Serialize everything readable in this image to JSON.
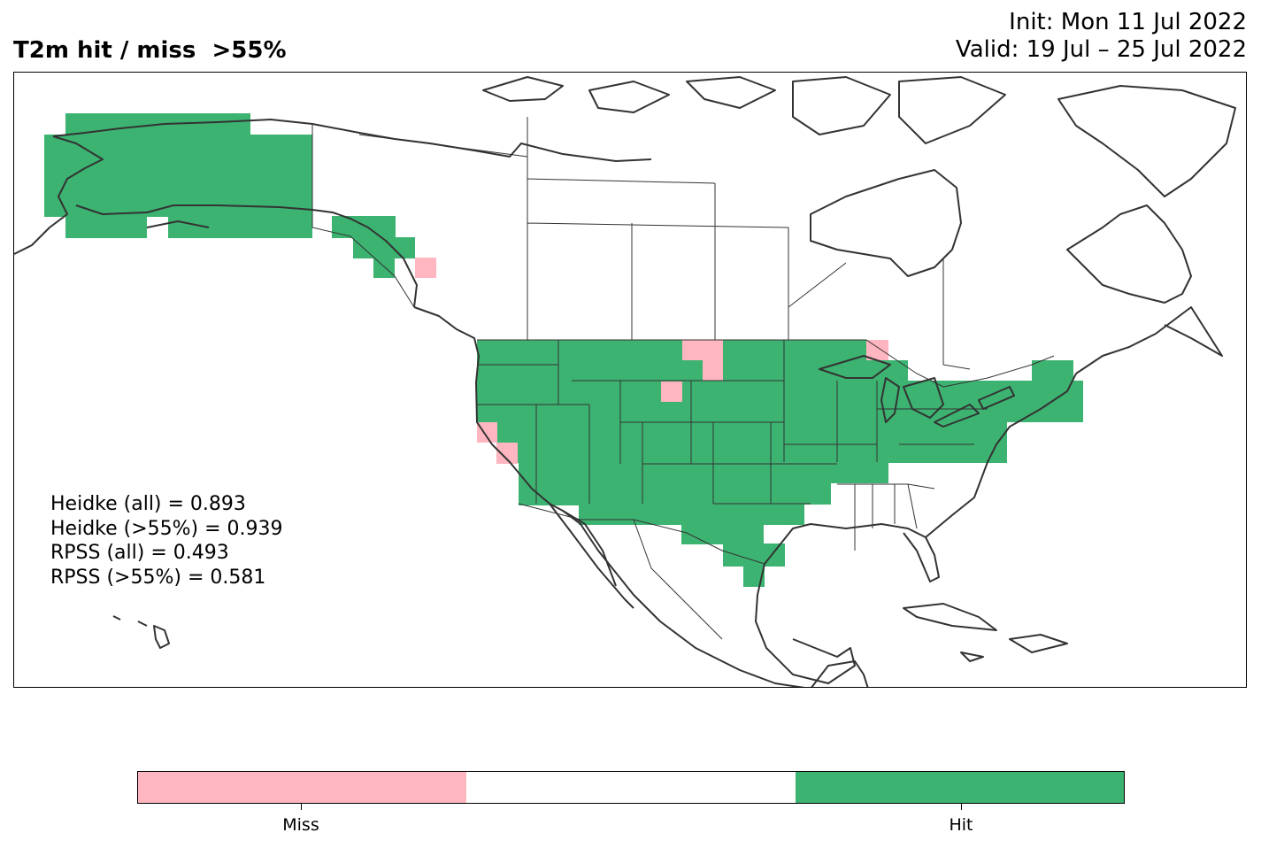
{
  "title": "T2m hit / miss  >55%",
  "init_line": "Init: Mon 11 Jul 2022",
  "valid_line": "Valid: 19 Jul – 25 Jul 2022",
  "stats": [
    "Heidke (all) = 0.893",
    "Heidke (>55%) = 0.939",
    "RPSS (all) = 0.493",
    "RPSS (>55%) = 0.581"
  ],
  "colorbar": {
    "segments": [
      {
        "category": "Miss",
        "color": "#ffb6c1"
      },
      {
        "category": "",
        "color": "#ffffff"
      },
      {
        "category": "Hit",
        "color": "#3cb371"
      }
    ],
    "tick_labels": [
      "Miss",
      "Hit"
    ]
  },
  "colors": {
    "hit": "#3cb371",
    "miss": "#ffb6c1",
    "coastline": "#333333",
    "border": "#000000"
  }
}
